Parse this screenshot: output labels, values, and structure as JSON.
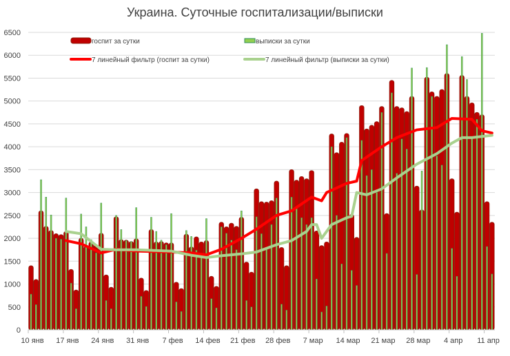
{
  "chart_data": {
    "type": "bar",
    "title": "Украина. Суточные госпитализации/выписки",
    "xlabel": "",
    "ylabel": "",
    "ylim": [
      0,
      6500
    ],
    "yticks": [
      0,
      500,
      1000,
      1500,
      2000,
      2500,
      3000,
      3500,
      4000,
      4500,
      5000,
      5500,
      6000,
      6500
    ],
    "grid": true,
    "legend_position": "top",
    "xtick_labels": [
      "10 янв",
      "17 янв",
      "24 янв",
      "31 янв",
      "7 фев",
      "14 фев",
      "21 фев",
      "28 фев",
      "7 мар",
      "14 мар",
      "21 мар",
      "28 мар",
      "4 апр",
      "11 апр"
    ],
    "categories": [
      "01-10",
      "01-11",
      "01-12",
      "01-13",
      "01-14",
      "01-15",
      "01-16",
      "01-17",
      "01-18",
      "01-19",
      "01-20",
      "01-21",
      "01-22",
      "01-23",
      "01-24",
      "01-25",
      "01-26",
      "01-27",
      "01-28",
      "01-29",
      "01-30",
      "01-31",
      "02-01",
      "02-02",
      "02-03",
      "02-04",
      "02-05",
      "02-06",
      "02-07",
      "02-08",
      "02-09",
      "02-10",
      "02-11",
      "02-12",
      "02-13",
      "02-14",
      "02-15",
      "02-16",
      "02-17",
      "02-18",
      "02-19",
      "02-20",
      "02-21",
      "02-22",
      "02-23",
      "02-24",
      "02-25",
      "02-26",
      "02-27",
      "02-28",
      "03-01",
      "03-02",
      "03-03",
      "03-04",
      "03-05",
      "03-06",
      "03-07",
      "03-08",
      "03-09",
      "03-10",
      "03-11",
      "03-12",
      "03-13",
      "03-14",
      "03-15",
      "03-16",
      "03-17",
      "03-18",
      "03-19",
      "03-20",
      "03-21",
      "03-22",
      "03-23",
      "03-24",
      "03-25",
      "03-26",
      "03-27",
      "03-28",
      "03-29",
      "03-30",
      "03-31",
      "04-01",
      "04-02",
      "04-03",
      "04-04",
      "04-05",
      "04-06",
      "04-07",
      "04-08",
      "04-09",
      "04-10",
      "04-11",
      "04-12"
    ],
    "series": [
      {
        "name": "госпит за сутки",
        "kind": "bar",
        "color": "#c00000",
        "edge": "#8b1a0a",
        "values": [
          1400,
          1100,
          2600,
          2260,
          2170,
          2100,
          2080,
          2150,
          1320,
          870,
          2000,
          1820,
          1920,
          1860,
          2110,
          1200,
          930,
          2470,
          1970,
          1960,
          1930,
          1990,
          1130,
          860,
          2190,
          1920,
          1930,
          1900,
          1900,
          1040,
          900,
          2090,
          1810,
          2030,
          1920,
          1950,
          1170,
          950,
          2350,
          2250,
          2330,
          2260,
          2460,
          1480,
          1260,
          3080,
          2800,
          2790,
          2820,
          3250,
          1800,
          1400,
          3500,
          3270,
          3350,
          3300,
          3480,
          2160,
          1840,
          1920,
          4280,
          3870,
          4100,
          4290,
          2520,
          2020,
          4900,
          4390,
          4470,
          4550,
          4880,
          2540,
          5450,
          4880,
          4850,
          4770,
          5100,
          3140,
          2620,
          5520,
          5200,
          5100,
          5250,
          5600,
          3300,
          2570,
          5560,
          5100,
          4960,
          4750,
          4700,
          2800,
          2350
        ]
      },
      {
        "name": "выписки за сутки",
        "kind": "bar",
        "color": "#92d050",
        "edge": "#2e8b57",
        "values": [
          780,
          550,
          3280,
          2900,
          2510,
          2000,
          1980,
          2880,
          1020,
          460,
          2530,
          2250,
          1970,
          1680,
          2770,
          640,
          460,
          2500,
          2190,
          1950,
          1930,
          2670,
          730,
          510,
          2460,
          2150,
          1960,
          1860,
          2540,
          610,
          400,
          2170,
          2040,
          1740,
          1600,
          2430,
          680,
          480,
          2250,
          2110,
          1960,
          1750,
          2600,
          640,
          500,
          2470,
          2100,
          1750,
          2300,
          2880,
          560,
          430,
          2900,
          2670,
          2450,
          2300,
          2450,
          1110,
          390,
          520,
          4000,
          2500,
          1440,
          4200,
          1300,
          970,
          4140,
          3370,
          3500,
          3000,
          4750,
          1670,
          5180,
          3420,
          4170,
          3950,
          5720,
          1210,
          3470,
          5730,
          5100,
          3800,
          3600,
          6230,
          1780,
          1170,
          5970,
          5470,
          4200,
          4600,
          6480,
          1820,
          1220
        ]
      },
      {
        "name": "7 линейный фильтр (госпит за сутки)",
        "kind": "line",
        "color": "#ff0000",
        "points": [
          [
            "01-17",
            1950
          ],
          [
            "01-20",
            1880
          ],
          [
            "01-24",
            1680
          ],
          [
            "01-27",
            1760
          ],
          [
            "01-31",
            1720
          ],
          [
            "02-07",
            1700
          ],
          [
            "02-11",
            1680
          ],
          [
            "02-14",
            1640
          ],
          [
            "02-17",
            1760
          ],
          [
            "02-21",
            2000
          ],
          [
            "02-24",
            2200
          ],
          [
            "02-28",
            2500
          ],
          [
            "03-03",
            2600
          ],
          [
            "03-07",
            2900
          ],
          [
            "03-09",
            2820
          ],
          [
            "03-10",
            3000
          ],
          [
            "03-14",
            3200
          ],
          [
            "03-16",
            3250
          ],
          [
            "03-17",
            3700
          ],
          [
            "03-21",
            4000
          ],
          [
            "03-24",
            4200
          ],
          [
            "03-28",
            4370
          ],
          [
            "04-01",
            4420
          ],
          [
            "04-04",
            4620
          ],
          [
            "04-08",
            4600
          ],
          [
            "04-10",
            4350
          ],
          [
            "04-12",
            4300
          ]
        ]
      },
      {
        "name": "7 линейный фильтр (выписки за сутки)",
        "kind": "line",
        "color": "#a9d18e",
        "points": [
          [
            "01-17",
            2150
          ],
          [
            "01-20",
            2100
          ],
          [
            "01-24",
            1760
          ],
          [
            "01-27",
            1750
          ],
          [
            "01-31",
            1750
          ],
          [
            "02-07",
            1720
          ],
          [
            "02-11",
            1630
          ],
          [
            "02-14",
            1580
          ],
          [
            "02-17",
            1620
          ],
          [
            "02-21",
            1660
          ],
          [
            "02-24",
            1700
          ],
          [
            "02-28",
            1860
          ],
          [
            "03-03",
            1950
          ],
          [
            "03-06",
            2150
          ],
          [
            "03-07",
            2300
          ],
          [
            "03-08",
            2300
          ],
          [
            "03-09",
            2000
          ],
          [
            "03-11",
            2300
          ],
          [
            "03-14",
            2450
          ],
          [
            "03-15",
            2480
          ],
          [
            "03-16",
            3000
          ],
          [
            "03-18",
            2950
          ],
          [
            "03-21",
            3080
          ],
          [
            "03-24",
            3320
          ],
          [
            "03-28",
            3620
          ],
          [
            "04-01",
            3850
          ],
          [
            "04-04",
            4080
          ],
          [
            "04-06",
            4200
          ],
          [
            "04-08",
            4200
          ],
          [
            "04-12",
            4250
          ]
        ]
      }
    ]
  }
}
